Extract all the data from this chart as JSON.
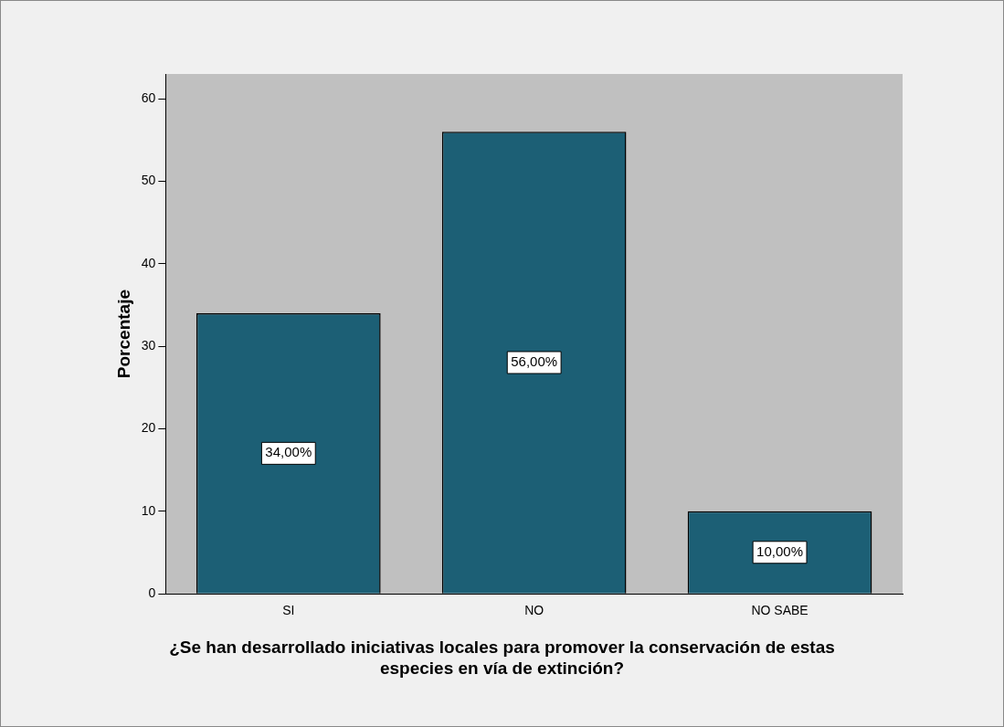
{
  "chart_data": {
    "type": "bar",
    "xlabel": "¿Se han desarrollado iniciativas locales para promover la conservación de estas especies en vía de extinción?",
    "ylabel": "Porcentaje",
    "categories": [
      "SI",
      "NO",
      "NO SABE"
    ],
    "values": [
      34,
      56,
      10
    ],
    "value_labels": [
      "34,00%",
      "56,00%",
      "10,00%"
    ],
    "color": "#1c5f75",
    "ylim": [
      0,
      63
    ],
    "yticks": [
      0,
      10,
      20,
      30,
      40,
      50,
      60
    ]
  }
}
